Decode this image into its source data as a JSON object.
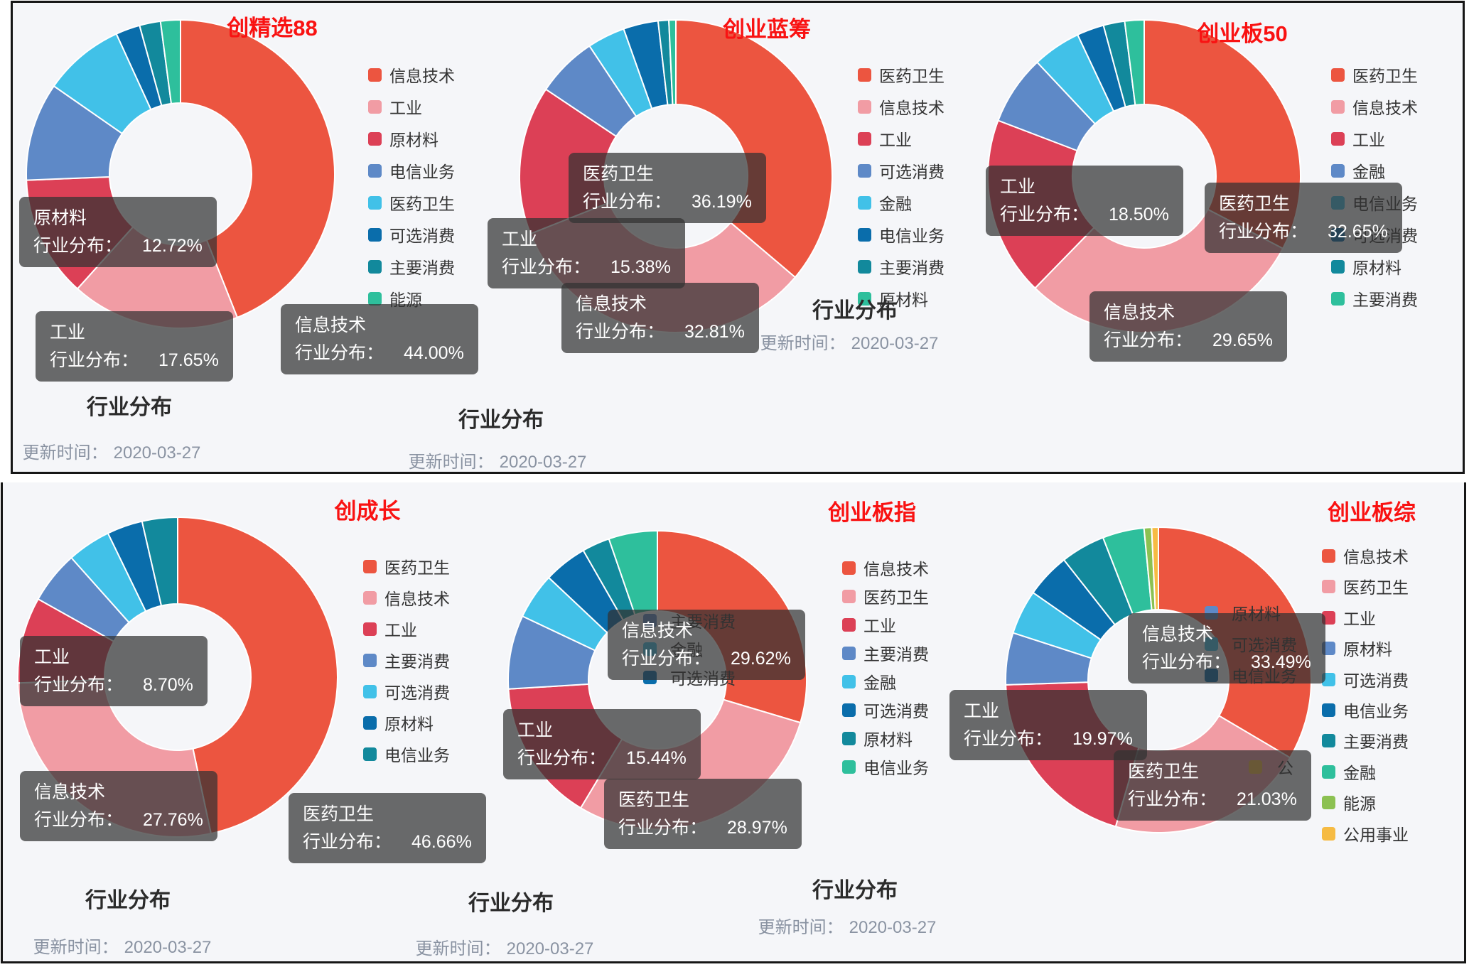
{
  "page": {
    "background": "#ffffff",
    "card_background": "#f5f6f9",
    "card_border_color": "#161616",
    "title_color": "#f91212",
    "tooltip_background": "rgba(50,50,50,0.72)"
  },
  "strings": {
    "metric_label": "行业分布：",
    "section_label": "行业分布",
    "update_label": "更新时间：",
    "update_date": "2020-03-27"
  },
  "chart_data": [
    {
      "type": "pie",
      "subtype": "donut",
      "title": "创精选88",
      "legend_position": "right",
      "categories": [
        "信息技术",
        "工业",
        "原材料",
        "电信业务",
        "医药卫生",
        "可选消费",
        "主要消费",
        "能源"
      ],
      "values": [
        44.0,
        17.65,
        12.72,
        10.3,
        8.5,
        2.55,
        2.2,
        2.08
      ],
      "colors": [
        "#ec5540",
        "#f19ca4",
        "#dc4056",
        "#5e89c7",
        "#41c1e8",
        "#0a6dab",
        "#12899c",
        "#2ebf9c"
      ],
      "tooltips_shown": [
        {
          "category": "原材料",
          "value": "12.72%"
        },
        {
          "category": "工业",
          "value": "17.65%"
        },
        {
          "category": "信息技术",
          "value": "44.00%"
        }
      ],
      "section_label": "行业分布",
      "update_date": "2020-03-27"
    },
    {
      "type": "pie",
      "subtype": "donut",
      "title": "创业蓝筹",
      "legend_position": "right",
      "categories": [
        "医药卫生",
        "信息技术",
        "工业",
        "可选消费",
        "金融",
        "电信业务",
        "主要消费",
        "原材料"
      ],
      "values": [
        36.19,
        32.81,
        15.38,
        6.3,
        3.9,
        3.6,
        1.1,
        0.72
      ],
      "colors": [
        "#ec5540",
        "#f19ca4",
        "#dc4056",
        "#5e89c7",
        "#41c1e8",
        "#0a6dab",
        "#12899c",
        "#2ebf9c"
      ],
      "tooltips_shown": [
        {
          "category": "医药卫生",
          "value": "36.19%"
        },
        {
          "category": "工业",
          "value": "15.38%"
        },
        {
          "category": "信息技术",
          "value": "32.81%"
        }
      ],
      "section_label": "行业分布",
      "update_date": "2020-03-27"
    },
    {
      "type": "pie",
      "subtype": "donut",
      "title": "创业板50",
      "legend_position": "right",
      "categories": [
        "医药卫生",
        "信息技术",
        "工业",
        "金融",
        "电信业务",
        "可选消费",
        "原材料",
        "主要消费"
      ],
      "values": [
        32.65,
        29.65,
        18.5,
        7.2,
        5.0,
        2.8,
        2.2,
        2.0
      ],
      "colors": [
        "#ec5540",
        "#f19ca4",
        "#dc4056",
        "#5e89c7",
        "#41c1e8",
        "#0a6dab",
        "#12899c",
        "#2ebf9c"
      ],
      "tooltips_shown": [
        {
          "category": "工业",
          "value": "18.50%"
        },
        {
          "category": "医药卫生",
          "value": "32.65%"
        },
        {
          "category": "信息技术",
          "value": "29.65%"
        }
      ],
      "section_label": "行业分布",
      "update_date": "2020-03-27"
    },
    {
      "type": "pie",
      "subtype": "donut",
      "title": "创成长",
      "legend_position": "right",
      "categories": [
        "医药卫生",
        "信息技术",
        "工业",
        "主要消费",
        "可选消费",
        "原材料",
        "电信业务"
      ],
      "values": [
        46.66,
        27.76,
        8.7,
        5.3,
        4.4,
        3.6,
        3.58
      ],
      "colors": [
        "#ec5540",
        "#f19ca4",
        "#dc4056",
        "#5e89c7",
        "#41c1e8",
        "#0a6dab",
        "#12899c"
      ],
      "tooltips_shown": [
        {
          "category": "工业",
          "value": "8.70%"
        },
        {
          "category": "信息技术",
          "value": "27.76%"
        },
        {
          "category": "医药卫生",
          "value": "46.66%"
        }
      ],
      "section_label": "行业分布",
      "update_date": "2020-03-27"
    },
    {
      "type": "pie",
      "subtype": "donut",
      "title": "创业板指",
      "legend_position": "right",
      "categories": [
        "信息技术",
        "医药卫生",
        "工业",
        "主要消费",
        "金融",
        "可选消费",
        "原材料",
        "电信业务"
      ],
      "values": [
        29.62,
        28.97,
        15.44,
        8.0,
        5.0,
        4.7,
        3.0,
        5.27
      ],
      "colors": [
        "#ec5540",
        "#f19ca4",
        "#dc4056",
        "#5e89c7",
        "#41c1e8",
        "#0a6dab",
        "#12899c",
        "#2ebf9c"
      ],
      "tooltips_shown": [
        {
          "category": "信息技术",
          "value": "29.62%"
        },
        {
          "category": "工业",
          "value": "15.44%"
        },
        {
          "category": "医药卫生",
          "value": "28.97%"
        }
      ],
      "ghost_legend": [
        {
          "label": "主要消费",
          "color": "#5e89c7"
        },
        {
          "label": "金融",
          "color": "#41c1e8"
        },
        {
          "label": "可选消费",
          "color": "#0a6dab"
        }
      ],
      "section_label": "行业分布",
      "update_date": "2020-03-27"
    },
    {
      "type": "pie",
      "subtype": "donut",
      "title": "创业板综",
      "legend_position": "right",
      "categories": [
        "信息技术",
        "医药卫生",
        "工业",
        "原材料",
        "可选消费",
        "电信业务",
        "主要消费",
        "金融",
        "能源",
        "公用事业"
      ],
      "values": [
        33.49,
        21.03,
        19.97,
        5.5,
        4.7,
        4.7,
        4.7,
        4.4,
        0.8,
        0.71
      ],
      "colors": [
        "#ec5540",
        "#f19ca4",
        "#dc4056",
        "#5e89c7",
        "#41c1e8",
        "#0a6dab",
        "#12899c",
        "#2ebf9c",
        "#8cc152",
        "#f6bb43"
      ],
      "tooltips_shown": [
        {
          "category": "信息技术",
          "value": "33.49%"
        },
        {
          "category": "工业",
          "value": "19.97%"
        },
        {
          "category": "医药卫生",
          "value": "21.03%"
        }
      ],
      "ghost_legend": [
        {
          "label": "原材料",
          "color": "#5e89c7"
        },
        {
          "label": "可选消费",
          "color": "#41c1e8"
        },
        {
          "label": "电信业务",
          "color": "#0a6dab"
        },
        {
          "label": "公",
          "color": "#f6bb43"
        }
      ],
      "section_label": "行业分布",
      "update_date": "2020-03-27"
    }
  ]
}
